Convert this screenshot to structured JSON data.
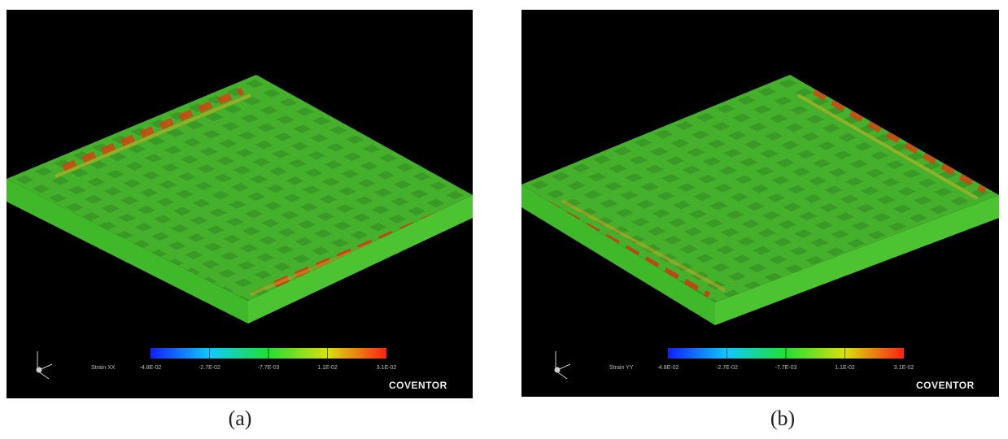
{
  "panels": [
    {
      "legend_title": "Strain XX",
      "scale_labels": [
        "-4.8E-02",
        "-2.7E-02",
        "-7.7E-03",
        "1.1E-02",
        "3.1E-02"
      ],
      "brand": "COVENTOR",
      "caption": "(a)"
    },
    {
      "legend_title": "Strain YY",
      "scale_labels": [
        "-4.8E-02",
        "-2.7E-02",
        "-7.7E-03",
        "1.1E-02",
        "3.1E-02"
      ],
      "brand": "COVENTOR",
      "caption": "(b)"
    }
  ]
}
